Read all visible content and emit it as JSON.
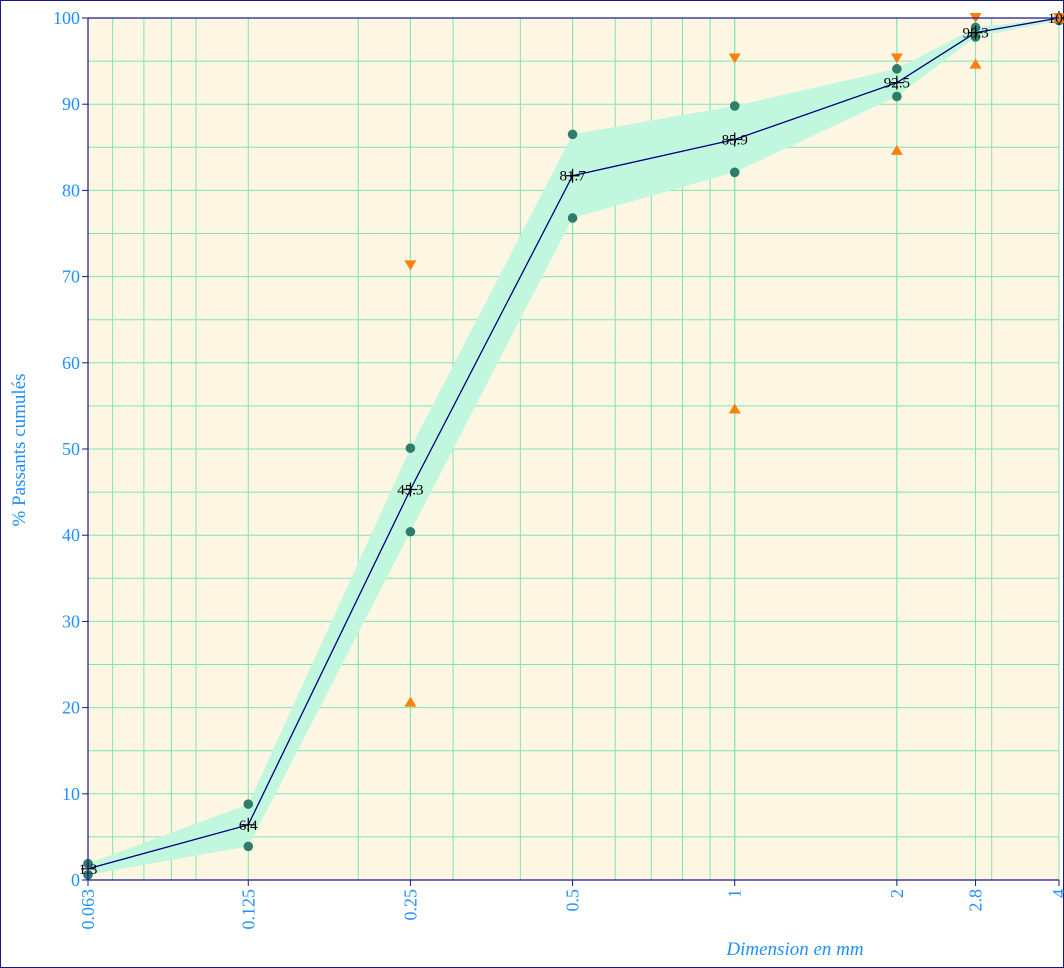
{
  "chart_data": {
    "type": "line",
    "x_scale": "log",
    "x_ticks": [
      0.063,
      0.125,
      0.25,
      0.5,
      1,
      2,
      2.8,
      4
    ],
    "x_tick_labels": [
      "0.063",
      "0.125",
      "0.25",
      "0.5",
      "1",
      "2",
      "2.8",
      "4"
    ],
    "y_ticks": [
      0,
      10,
      20,
      30,
      40,
      50,
      60,
      70,
      80,
      90,
      100
    ],
    "ylim": [
      0,
      100
    ],
    "xlabel": "Dimension en mm",
    "ylabel": "% Passants cumulés",
    "grid": true,
    "series": [
      {
        "x": [
          0.063,
          0.125,
          0.25,
          0.5,
          1,
          2,
          2.8,
          4
        ],
        "values": [
          1.3,
          6.4,
          45.3,
          81.7,
          85.9,
          92.5,
          98.3,
          100
        ],
        "labels": [
          "1.3",
          "6.4",
          "45.3",
          "81.7",
          "85.9",
          "92.5",
          "98.3",
          "100"
        ]
      }
    ],
    "envelope": {
      "x": [
        0.063,
        0.125,
        0.25,
        0.5,
        1,
        2,
        2.8,
        4
      ],
      "upper": [
        1.9,
        8.8,
        50.1,
        86.5,
        89.8,
        94.1,
        98.9,
        100
      ],
      "lower": [
        0.6,
        3.9,
        40.4,
        76.8,
        82.1,
        90.9,
        97.8,
        99.7
      ]
    },
    "limit_upper": {
      "x": [
        0.25,
        1,
        2,
        2.8,
        4
      ],
      "values": [
        71.3,
        95.3,
        95.3,
        100,
        100
      ]
    },
    "limit_lower": {
      "x": [
        0.25,
        1,
        2,
        2.8,
        4
      ],
      "values": [
        20.7,
        54.7,
        84.7,
        94.7,
        100
      ]
    },
    "colors": {
      "plot_background": "#fdf6e3",
      "grid": "#7fe5b0",
      "envelope": "#c2f7df",
      "line": "#000080",
      "envelope_points": "#2e7d6b",
      "limit_markers": "#ff7f0e",
      "tick_text": "#1e90ff",
      "frame": "#1a1a8c"
    }
  }
}
